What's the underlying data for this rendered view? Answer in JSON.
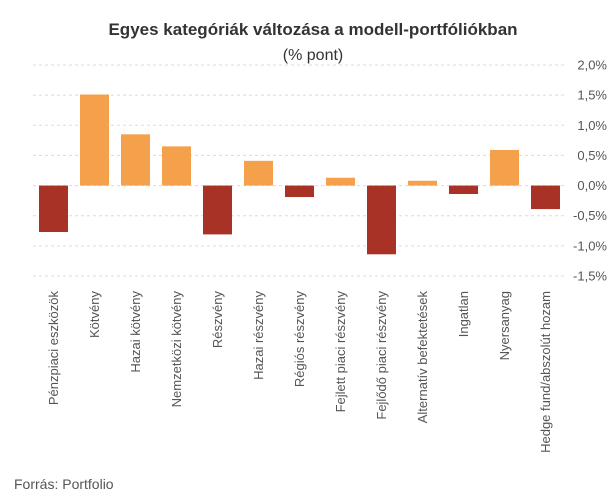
{
  "chart_data": {
    "type": "bar",
    "title": "Egyes kategóriák változása a modell-portfóliókban",
    "subtitle": "(% pont)",
    "source": "Forrás: Portfolio",
    "xlabel": "",
    "ylabel": "",
    "ylim": [
      -1.5,
      2.0
    ],
    "yticks": [
      2.0,
      1.5,
      1.0,
      0.5,
      0.0,
      -0.5,
      -1.0,
      -1.5
    ],
    "ytick_labels": [
      "2,0%",
      "1,5%",
      "1,0%",
      "0,5%",
      "0,0%",
      "-0,5%",
      "-1,0%",
      "-1,5%"
    ],
    "grid": true,
    "categories": [
      "Pénzpiaci eszközök",
      "Kötvény",
      "Hazai kötvény",
      "Nemzetközi kötvény",
      "Részvény",
      "Hazai részvény",
      "Régiós részvény",
      "Fejlett piaci részvény",
      "Fejlődő piaci részvény",
      "Alternatív befektetések",
      "Ingatlan",
      "Nyersanyag",
      "Hedge fund/abszolút hozam"
    ],
    "values": [
      -0.77,
      1.51,
      0.85,
      0.65,
      -0.81,
      0.41,
      -0.19,
      0.13,
      -1.14,
      0.08,
      -0.14,
      0.59,
      -0.39
    ],
    "colors": {
      "positive": "#F5A04A",
      "negative": "#A93226"
    }
  }
}
